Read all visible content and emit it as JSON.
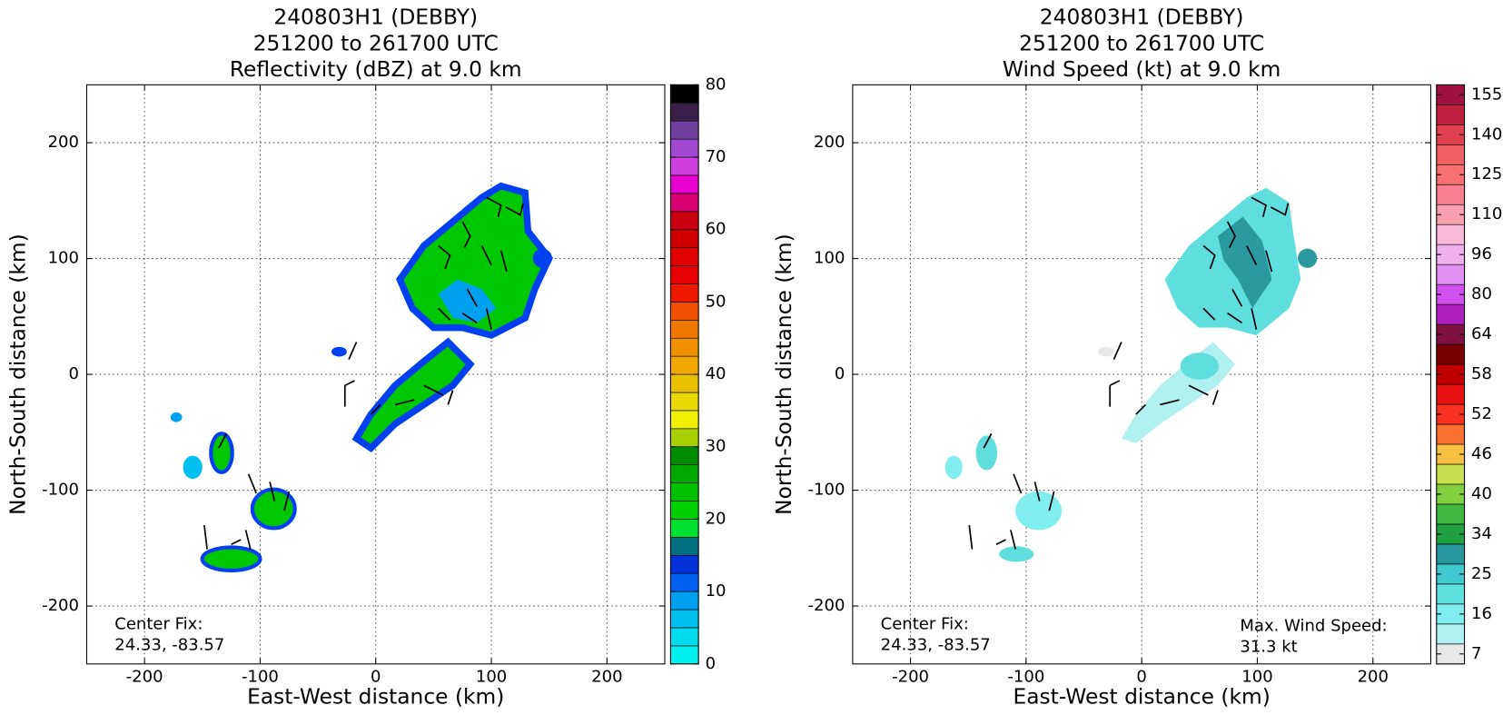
{
  "chart_data": [
    {
      "type": "heatmap",
      "title": [
        "240803H1 (DEBBY)",
        "251200 to 261700 UTC",
        "Reflectivity (dBZ) at 9.0 km"
      ],
      "xlabel": "East-West distance (km)",
      "ylabel": "North-South distance (km)",
      "xlim": [
        -250,
        250
      ],
      "ylim": [
        -250,
        250
      ],
      "xticks": [
        -200,
        -100,
        0,
        100,
        200
      ],
      "yticks": [
        -200,
        -100,
        0,
        100,
        200
      ],
      "grid": true,
      "center_fix": [
        "Center Fix:",
        "24.33, -83.57"
      ],
      "colorbar": {
        "lim": [
          0,
          80
        ],
        "ticks": [
          0,
          10,
          20,
          30,
          40,
          50,
          60,
          70,
          80
        ],
        "colors": [
          "#00f0f0",
          "#00dcec",
          "#00c0f0",
          "#00a0f0",
          "#0060f0",
          "#0030d8",
          "#007080",
          "#00e030",
          "#00d000",
          "#00c000",
          "#00a800",
          "#008c00",
          "#a8d000",
          "#f0f000",
          "#e8d800",
          "#e8c000",
          "#f0a800",
          "#f09000",
          "#f07800",
          "#f05000",
          "#f01800",
          "#e80000",
          "#e00000",
          "#d00000",
          "#c80010",
          "#d80070",
          "#e800d0",
          "#d040e0",
          "#a048d0",
          "#7040a0",
          "#3a2048",
          "#000000"
        ]
      }
    },
    {
      "type": "heatmap",
      "title": [
        "240803H1 (DEBBY)",
        "251200 to 261700 UTC",
        "Wind Speed (kt) at 9.0 km"
      ],
      "xlabel": "East-West distance (km)",
      "ylabel": "North-South distance (km)",
      "xlim": [
        -250,
        250
      ],
      "ylim": [
        -250,
        250
      ],
      "xticks": [
        -200,
        -100,
        0,
        100,
        200
      ],
      "yticks": [
        -200,
        -100,
        0,
        100,
        200
      ],
      "grid": true,
      "center_fix": [
        "Center Fix:",
        "24.33, -83.57"
      ],
      "max_wind": [
        "Max. Wind Speed:",
        "31.3 kt"
      ],
      "colorbar": {
        "ticks": [
          7,
          16,
          25,
          34,
          40,
          46,
          52,
          58,
          64,
          80,
          96,
          110,
          125,
          140,
          155
        ],
        "colors": [
          "#e8e8e8",
          "#b0f0f0",
          "#80eeee",
          "#60e0e0",
          "#40c8d0",
          "#2898a0",
          "#20a040",
          "#40b840",
          "#80d040",
          "#c8e050",
          "#f8c040",
          "#f87030",
          "#f83020",
          "#e81010",
          "#c00000",
          "#780000",
          "#801040",
          "#b020c0",
          "#d050f0",
          "#e090f0",
          "#f0b0f0",
          "#f8b8d8",
          "#f8a0b0",
          "#f88090",
          "#f87070",
          "#f06060",
          "#e04050",
          "#c02040",
          "#a01040"
        ]
      }
    }
  ]
}
